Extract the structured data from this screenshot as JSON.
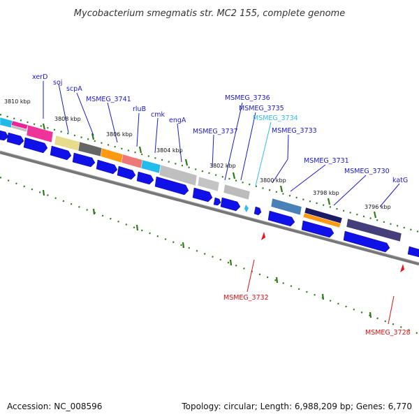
{
  "title": "Mycobacterium smegmatis str. MC2 155, complete genome",
  "footer": {
    "accession": "Accession: NC_008596",
    "summary": "Topology: circular; Length: 6,988,209 bp; Genes: 6,770"
  },
  "colors": {
    "background": "#ffffff",
    "cds": "#1010e8",
    "backbone": "#777777",
    "label_blue": "#1a1acc",
    "label_cyan": "#33bbee",
    "label_red": "#dd1111",
    "tick": "#2d7a1a",
    "marker_red": "#ee1111"
  },
  "kbp_labels": [
    "3810 kbp",
    "3808 kbp",
    "3806 kbp",
    "3804 kbp",
    "3802 kbp",
    "3800 kbp",
    "3798 kbp",
    "3796 kbp"
  ],
  "gene_labels": [
    {
      "name": "xerD",
      "color": "blue"
    },
    {
      "name": "soj",
      "color": "blue"
    },
    {
      "name": "scpA",
      "color": "blue"
    },
    {
      "name": "MSMEG_3741",
      "color": "blue"
    },
    {
      "name": "rluB",
      "color": "blue"
    },
    {
      "name": "cmk",
      "color": "blue"
    },
    {
      "name": "engA",
      "color": "blue"
    },
    {
      "name": "MSMEG_3737",
      "color": "blue"
    },
    {
      "name": "MSMEG_3736",
      "color": "blue"
    },
    {
      "name": "MSMEG_3735",
      "color": "blue"
    },
    {
      "name": "MSMEG_3734",
      "color": "cyan"
    },
    {
      "name": "MSMEG_3733",
      "color": "blue"
    },
    {
      "name": "MSMEG_3731",
      "color": "blue"
    },
    {
      "name": "MSMEG_3730",
      "color": "blue"
    },
    {
      "name": "katG",
      "color": "blue"
    },
    {
      "name": "MSMEG_3732",
      "color": "red"
    },
    {
      "name": "MSMEG_3728",
      "color": "red"
    }
  ]
}
